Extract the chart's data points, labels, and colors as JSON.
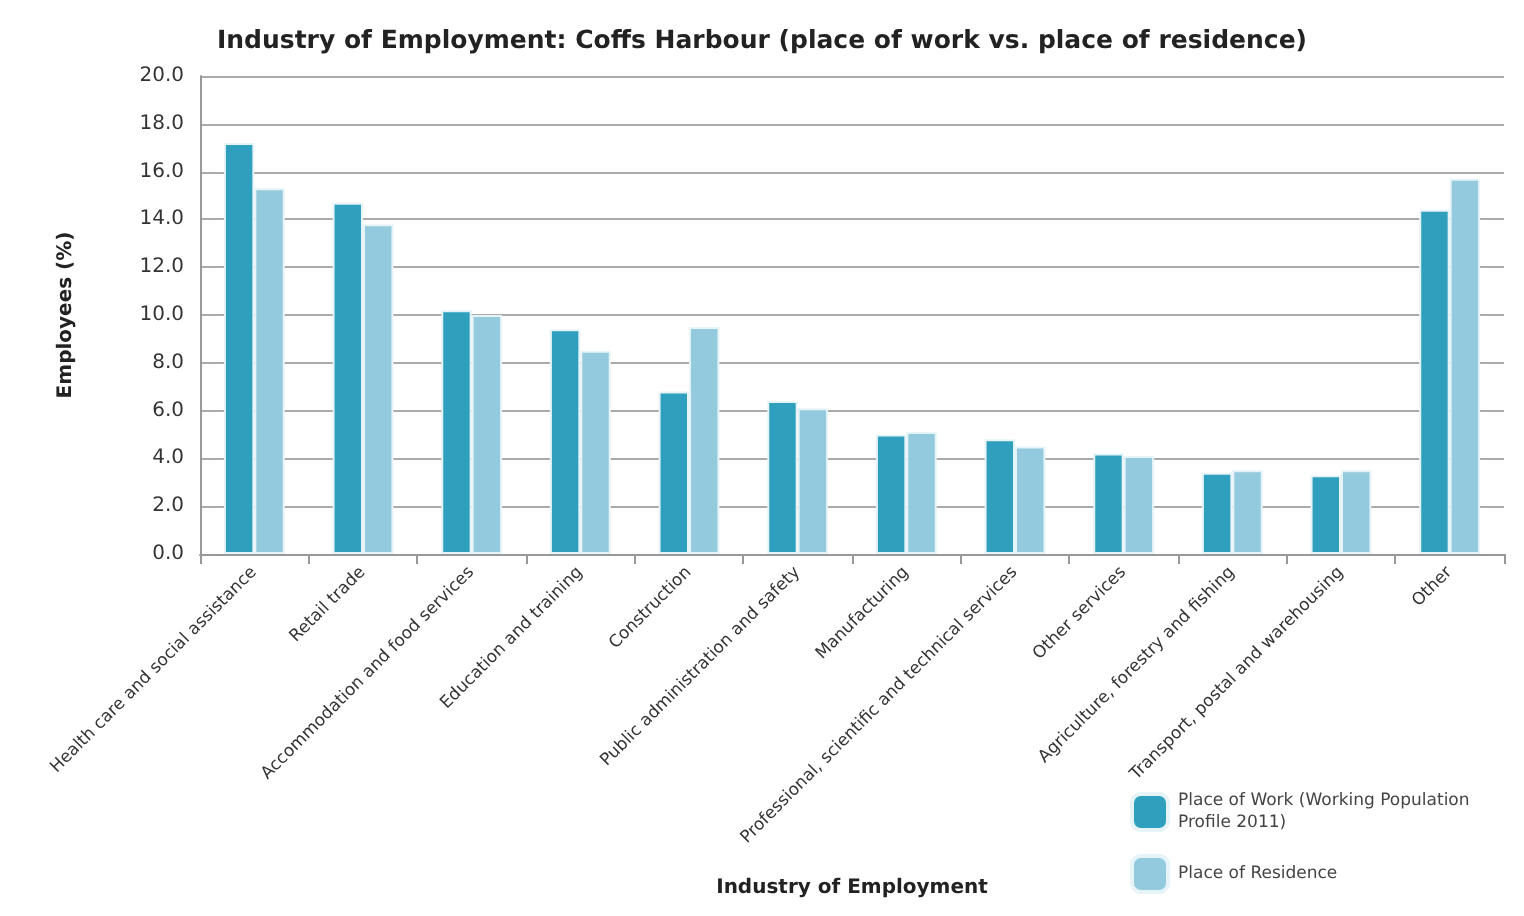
{
  "chart_data": {
    "type": "bar",
    "title": "Industry of Employment: Coffs Harbour (place of work vs. place of residence)",
    "xlabel": "Industry of Employment",
    "ylabel": "Employees (%)",
    "categories": [
      "Health care and social assistance",
      "Retail trade",
      "Accommodation and food services",
      "Education and training",
      "Construction",
      "Public administration and safety",
      "Manufacturing",
      "Professional, scientific and technical services",
      "Other services",
      "Agriculture, forestry and fishing",
      "Transport, postal and warehousing",
      "Other"
    ],
    "series": [
      {
        "name": "Place of Work (Working Population Profile 2011)",
        "color": "#2e9fbd",
        "values": [
          17.2,
          14.7,
          10.2,
          9.4,
          6.8,
          6.4,
          5.0,
          4.8,
          4.2,
          3.4,
          3.3,
          14.4
        ]
      },
      {
        "name": "Place of Residence",
        "color": "#93cade",
        "values": [
          15.3,
          13.8,
          10.0,
          8.5,
          9.5,
          6.1,
          5.1,
          4.5,
          4.1,
          3.5,
          3.5,
          15.7
        ]
      }
    ],
    "ylim": [
      0,
      20
    ],
    "yticks": [
      {
        "value": 0,
        "label": "0.0"
      },
      {
        "value": 2,
        "label": "2.0"
      },
      {
        "value": 4,
        "label": "4.0"
      },
      {
        "value": 6,
        "label": "6.0"
      },
      {
        "value": 8,
        "label": "8.0"
      },
      {
        "value": 10,
        "label": "10.0"
      },
      {
        "value": 12,
        "label": "12.0"
      },
      {
        "value": 14,
        "label": "14.0"
      },
      {
        "value": 16,
        "label": "16.0"
      },
      {
        "value": 18,
        "label": "18.0"
      },
      {
        "value": 20,
        "label": "20.0"
      }
    ],
    "grid": "y",
    "legend": "bottom right"
  }
}
